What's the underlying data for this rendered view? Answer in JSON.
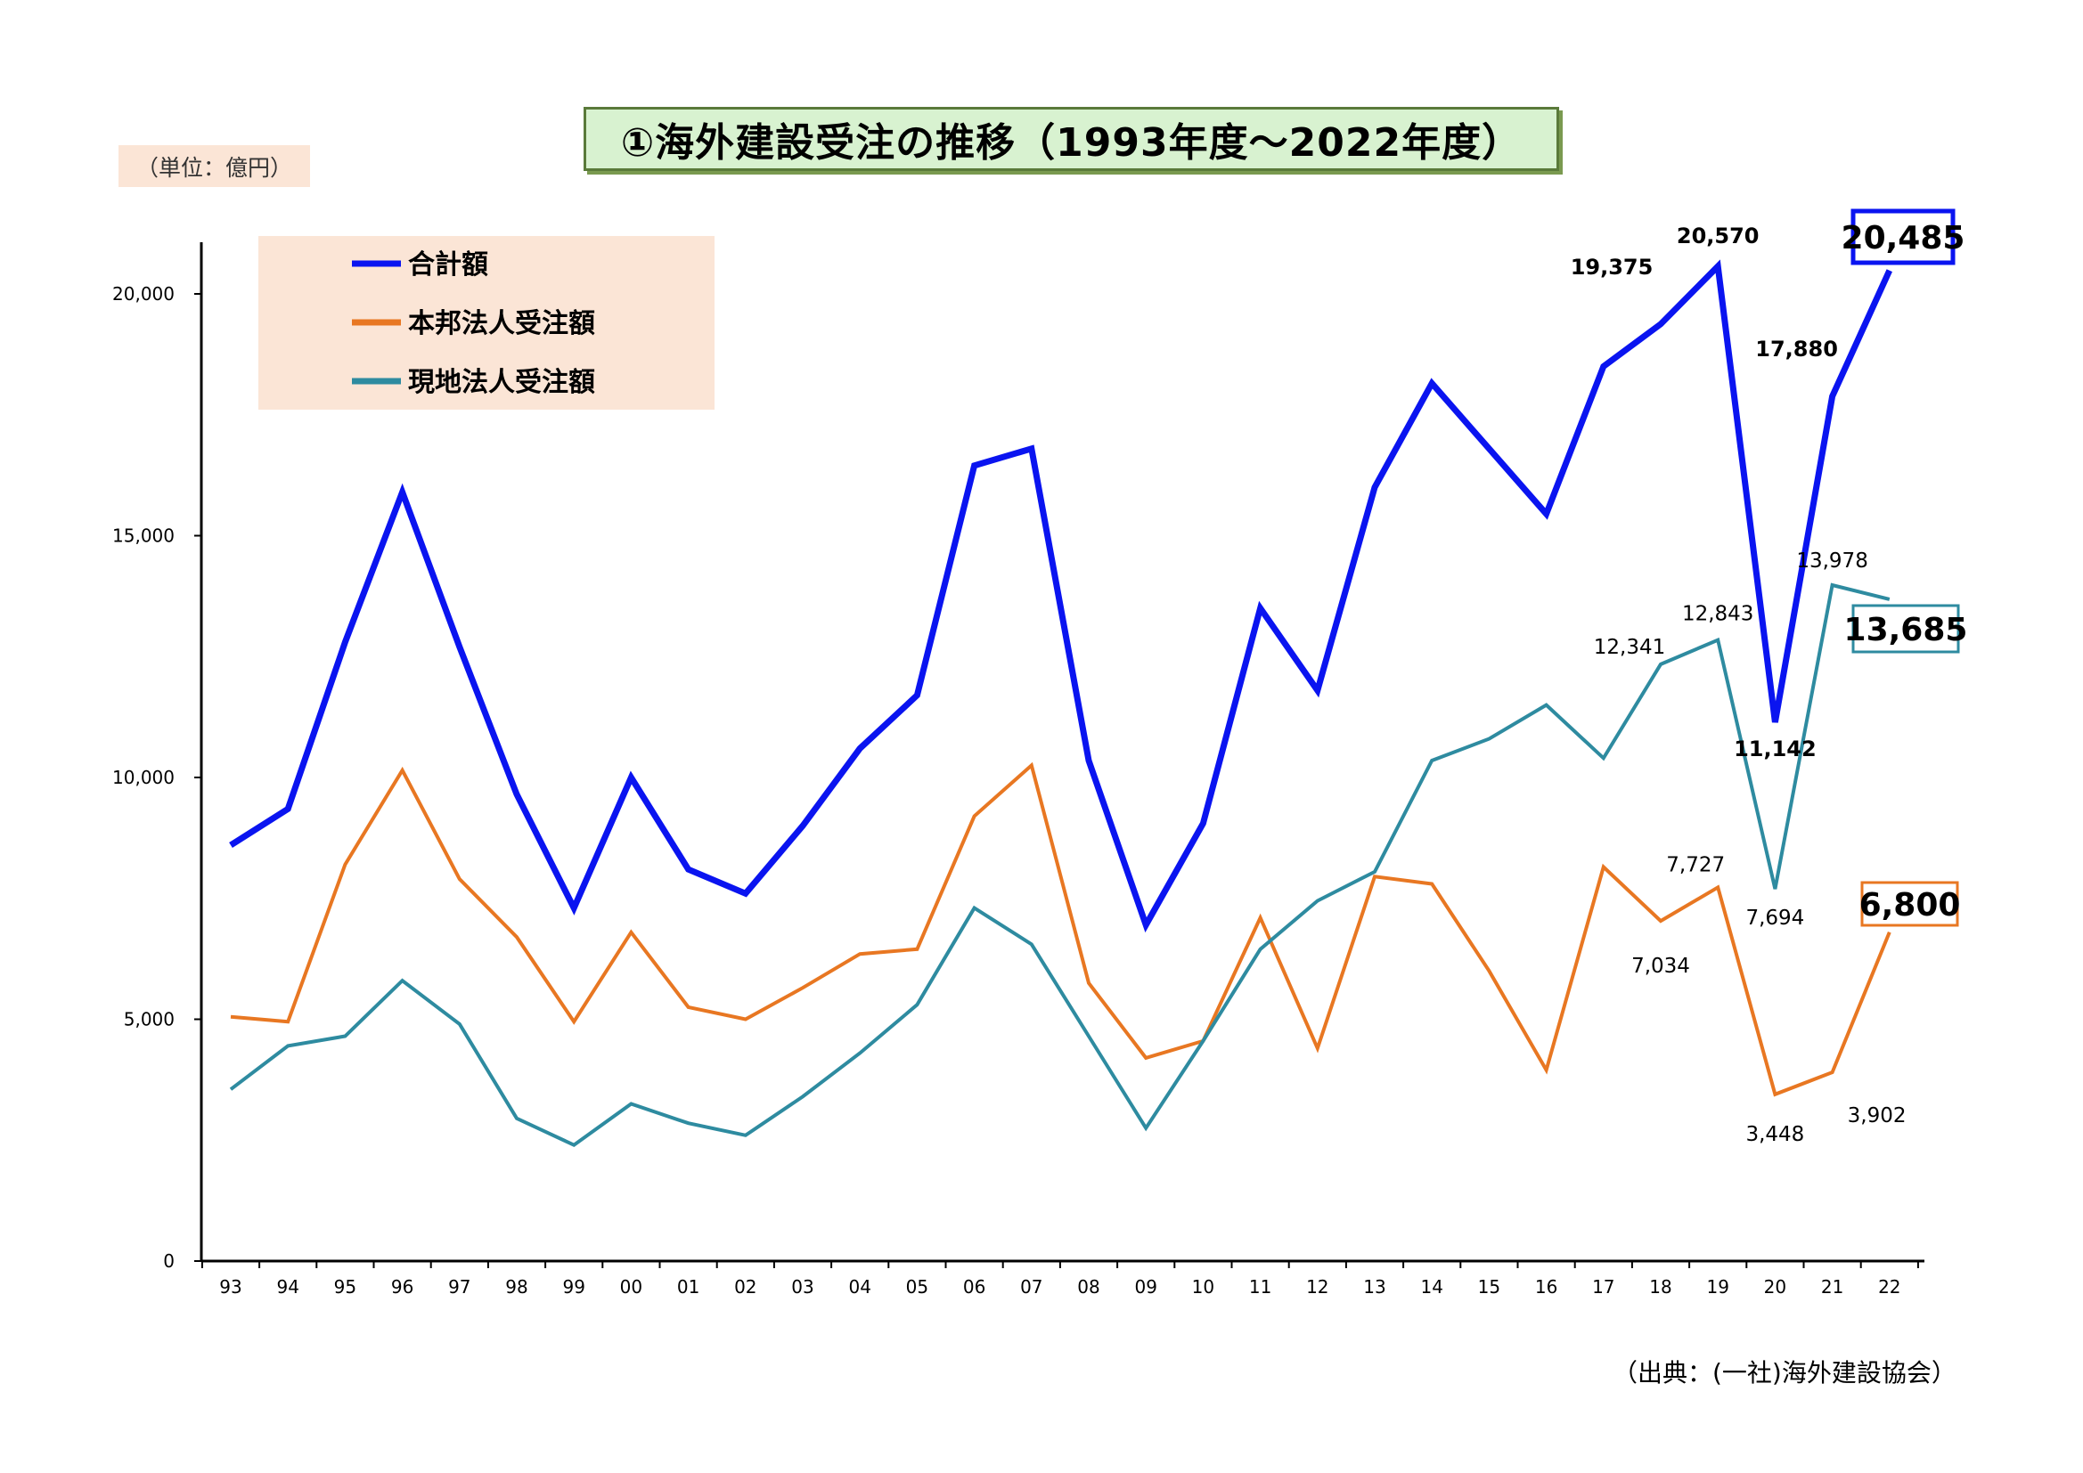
{
  "title": "①海外建設受注の推移（1993年度～2022年度）",
  "unit_label": "（単位：億円）",
  "source": "（出典：(一社)海外建設協会）",
  "chart_data": {
    "type": "line",
    "categories": [
      "93",
      "94",
      "95",
      "96",
      "97",
      "98",
      "99",
      "00",
      "01",
      "02",
      "03",
      "04",
      "05",
      "06",
      "07",
      "08",
      "09",
      "10",
      "11",
      "12",
      "13",
      "14",
      "15",
      "16",
      "17",
      "18",
      "19",
      "20",
      "21",
      "22"
    ],
    "ylim": [
      0,
      20000
    ],
    "yticks": [
      0,
      5000,
      10000,
      15000,
      20000
    ],
    "ytick_labels": [
      "0",
      "5,000",
      "10,000",
      "15,000",
      "20,000"
    ],
    "grid": false,
    "legend_position": "top-left",
    "series": [
      {
        "name": "合計額",
        "color": "#0a14f0",
        "values": [
          8600,
          9350,
          12800,
          15900,
          12700,
          9650,
          7300,
          10000,
          8100,
          7600,
          9000,
          10600,
          11700,
          16450,
          16800,
          10350,
          6950,
          9050,
          13500,
          11800,
          16000,
          18150,
          16800,
          15450,
          18500,
          19375,
          20570,
          11142,
          17880,
          20485
        ]
      },
      {
        "name": "本邦法人受注額",
        "color": "#e87722",
        "values": [
          5050,
          4950,
          8200,
          10150,
          7900,
          6700,
          4950,
          6800,
          5250,
          5000,
          5650,
          6350,
          6450,
          9200,
          10250,
          5750,
          4200,
          4550,
          7100,
          4400,
          7950,
          7800,
          6000,
          3950,
          8150,
          7034,
          7727,
          3448,
          3902,
          6800
        ]
      },
      {
        "name": "現地法人受注額",
        "color": "#2e8ba0",
        "values": [
          3550,
          4450,
          4650,
          5800,
          4900,
          2950,
          2400,
          3250,
          2850,
          2600,
          3400,
          4300,
          5300,
          7300,
          6550,
          4650,
          2750,
          4550,
          6450,
          7450,
          8050,
          10350,
          10800,
          11500,
          10400,
          12341,
          12843,
          7694,
          13978,
          13685
        ]
      }
    ],
    "annotations": [
      {
        "series": 0,
        "index": 25,
        "text": "19,375",
        "bold": true
      },
      {
        "series": 0,
        "index": 26,
        "text": "20,570",
        "bold": true
      },
      {
        "series": 0,
        "index": 27,
        "text": "11,142",
        "bold": true
      },
      {
        "series": 0,
        "index": 28,
        "text": "17,880",
        "bold": true
      },
      {
        "series": 0,
        "index": 29,
        "text": "20,485",
        "boxed": true
      },
      {
        "series": 1,
        "index": 25,
        "text": "7,034"
      },
      {
        "series": 1,
        "index": 26,
        "text": "7,727"
      },
      {
        "series": 1,
        "index": 27,
        "text": "3,448"
      },
      {
        "series": 1,
        "index": 28,
        "text": "3,902"
      },
      {
        "series": 1,
        "index": 29,
        "text": "6,800",
        "boxed": true
      },
      {
        "series": 2,
        "index": 25,
        "text": "12,341"
      },
      {
        "series": 2,
        "index": 26,
        "text": "12,843"
      },
      {
        "series": 2,
        "index": 27,
        "text": "7,694"
      },
      {
        "series": 2,
        "index": 28,
        "text": "13,978"
      },
      {
        "series": 2,
        "index": 29,
        "text": "13,685",
        "boxed": true
      }
    ]
  }
}
